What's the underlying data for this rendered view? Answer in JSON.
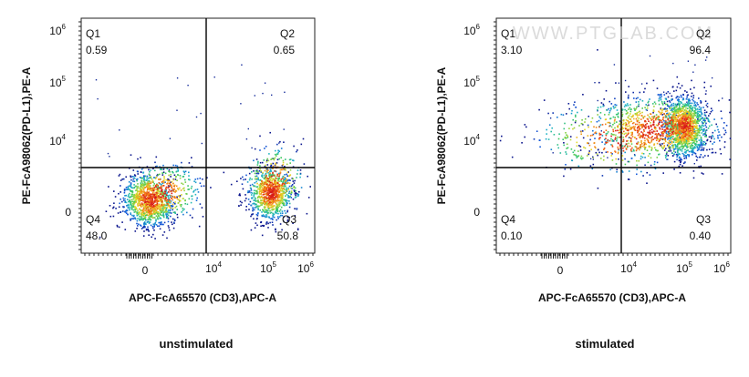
{
  "chart_data": [
    {
      "type": "scatter",
      "subtype": "flow-cytometry-density-dot-plot",
      "xlabel": "APC-FcA65570 (CD3),APC-A",
      "ylabel": "PE-FcA98062(PD-L1),PE-A",
      "caption": "unstimulated",
      "x_ticks": [
        "0",
        "10^4",
        "10^5",
        "10^6"
      ],
      "y_ticks": [
        "0",
        "10^4",
        "10^5",
        "10^6"
      ],
      "scale": "biexponential",
      "gate": {
        "x": "~10^4",
        "y": "~4×10^3"
      },
      "quadrants": [
        {
          "name": "Q1",
          "percent": "0.59"
        },
        {
          "name": "Q2",
          "percent": "0.65"
        },
        {
          "name": "Q3",
          "percent": "50.8"
        },
        {
          "name": "Q4",
          "percent": "48.0"
        }
      ],
      "populations": [
        {
          "quadrant": "Q4",
          "x_center": "~3×10^2",
          "y_center": "~-3×10^2"
        },
        {
          "quadrant": "Q3",
          "x_center": "~1.2×10^5",
          "y_center": "~2×10^2"
        }
      ]
    },
    {
      "type": "scatter",
      "subtype": "flow-cytometry-density-dot-plot",
      "xlabel": "APC-FcA65570 (CD3),APC-A",
      "ylabel": "PE-FcA98062(PD-L1),PE-A",
      "caption": "stimulated",
      "watermark": "WWW.PTGLAB.COM",
      "x_ticks": [
        "0",
        "10^4",
        "10^5",
        "10^6"
      ],
      "y_ticks": [
        "0",
        "10^4",
        "10^5",
        "10^6"
      ],
      "scale": "biexponential",
      "gate": {
        "x": "~10^4",
        "y": "~4×10^3"
      },
      "quadrants": [
        {
          "name": "Q1",
          "percent": "3.10"
        },
        {
          "name": "Q2",
          "percent": "96.4"
        },
        {
          "name": "Q3",
          "percent": "0.40"
        },
        {
          "name": "Q4",
          "percent": "0.10"
        }
      ],
      "populations": [
        {
          "quadrant": "Q2",
          "x_center": "~1.2×10^5",
          "y_center": "~2×10^4"
        }
      ]
    }
  ]
}
